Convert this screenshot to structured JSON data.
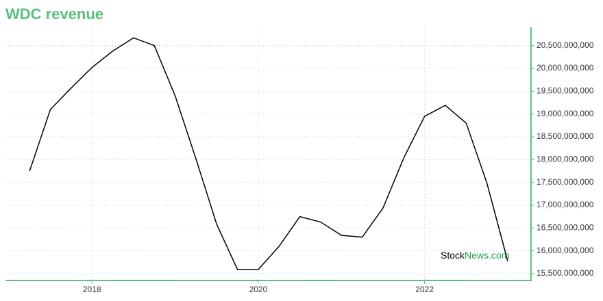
{
  "chart_data": {
    "type": "line",
    "title": "WDC revenue",
    "x": [
      2017.25,
      2017.5,
      2017.75,
      2018.0,
      2018.25,
      2018.5,
      2018.75,
      2019.0,
      2019.25,
      2019.5,
      2019.75,
      2020.0,
      2020.25,
      2020.5,
      2020.75,
      2021.0,
      2021.25,
      2021.5,
      2021.75,
      2022.0,
      2022.25,
      2022.5,
      2022.75,
      2023.0
    ],
    "series": [
      {
        "name": "WDC revenue",
        "color": "#000000",
        "values": [
          17750000000,
          19100000000,
          19570000000,
          20020000000,
          20380000000,
          20670000000,
          20500000000,
          19400000000,
          18020000000,
          16580000000,
          15590000000,
          15590000000,
          16100000000,
          16750000000,
          16630000000,
          16340000000,
          16300000000,
          16940000000,
          18040000000,
          18950000000,
          19190000000,
          18800000000,
          17480000000,
          15770000000
        ]
      }
    ],
    "xlim": [
      2016.96,
      2023.28
    ],
    "xticks": [
      2018,
      2020,
      2022
    ],
    "ylim": [
      15350000000,
      20900000000
    ],
    "yticks": [
      {
        "value": 15500000000,
        "label": "15,500,000,000"
      },
      {
        "value": 16000000000,
        "label": "16,000,000,000"
      },
      {
        "value": 16500000000,
        "label": "16,500,000,000"
      },
      {
        "value": 17000000000,
        "label": "17,000,000,000"
      },
      {
        "value": 17500000000,
        "label": "17,500,000,000"
      },
      {
        "value": 18000000000,
        "label": "18,000,000,000"
      },
      {
        "value": 18500000000,
        "label": "18,500,000,000"
      },
      {
        "value": 19000000000,
        "label": "19,000,000,000"
      },
      {
        "value": 19500000000,
        "label": "19,500,000,000"
      },
      {
        "value": 20000000000,
        "label": "20,000,000,000"
      },
      {
        "value": 20500000000,
        "label": "20,500,000,000"
      }
    ],
    "grid": true,
    "axis_color": "#5cbf7f",
    "watermark": {
      "first": "Stock",
      "second": "News.com"
    }
  }
}
